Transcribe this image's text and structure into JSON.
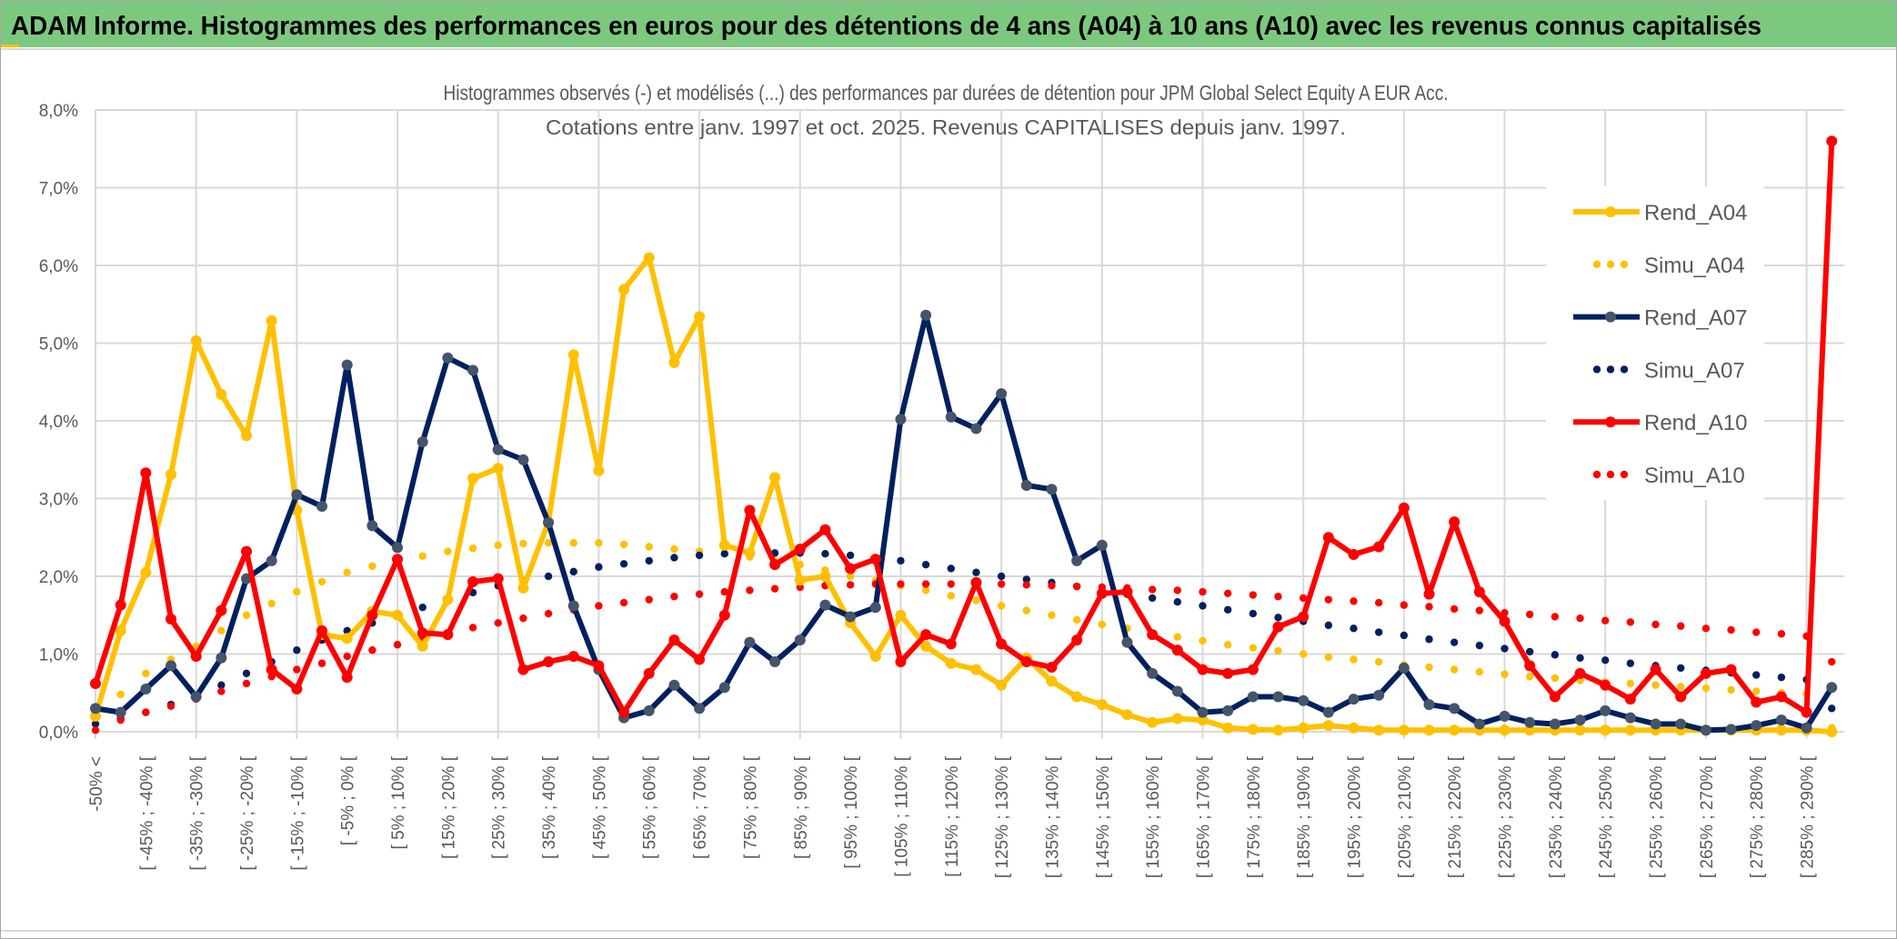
{
  "banner_title": "ADAM Informe. Histogrammes des performances en euros pour des détentions de 4 ans (A04) à 10 ans (A10) avec les revenus connus capitalisés",
  "colors": {
    "banner": "#7dc87f",
    "A04": "#ffc000",
    "A07": "#002060",
    "A07_marker": "#44546a",
    "A10": "#ff0000",
    "grid": "#d9d9d9"
  },
  "chart_data": {
    "type": "line",
    "title": [
      "Histogrammes observés (-) et modélisés (...) des performances par durées de détention pour JPM Global Select Equity A EUR Acc.",
      "Cotations entre janv. 1997 et oct. 2025. Revenus CAPITALISES depuis janv. 1997."
    ],
    "xlabel": "",
    "ylabel": "",
    "ylim": [
      0,
      8
    ],
    "y_ticks": [
      "0,0%",
      "1,0%",
      "2,0%",
      "3,0%",
      "4,0%",
      "5,0%",
      "6,0%",
      "7,0%",
      "8,0%"
    ],
    "n_categories": 70,
    "x_tick_labels_every_2": [
      "-50% <",
      "[ -45% ; -40% [",
      "[ -35% ; -30% [",
      "[ -25% ; -20% [",
      "[ -15% ; -10% [",
      "[ -5% ; 0% [",
      "[ 5% ; 10% [",
      "[ 15% ; 20% [",
      "[ 25% ; 30% [",
      "[ 35% ; 40% [",
      "[ 45% ; 50% [",
      "[ 55% ; 60% [",
      "[ 65% ; 70% [",
      "[ 75% ; 80% [",
      "[ 85% ; 90% [",
      "[ 95% ; 100% [",
      "[ 105% ; 110% [",
      "[ 115% ; 120% [",
      "[ 125% ; 130% [",
      "[ 135% ; 140% [",
      "[ 145% ; 150% [",
      "[ 155% ; 160% [",
      "[ 165% ; 170% [",
      "[ 175% ; 180% [",
      "[ 185% ; 190% [",
      "[ 195% ; 200% [",
      "[ 205% ; 210% [",
      "[ 215% ; 220% [",
      "[ 225% ; 230% [",
      "[ 235% ; 240% [",
      "[ 245% ; 250% [",
      "[ 255% ; 260% [",
      "[ 265% ; 270% [",
      "[ 275% ; 280% [",
      "[ 285% ; 290% ["
    ],
    "grid": true,
    "legend_position": "right",
    "series": [
      {
        "name": "Rend_A04",
        "style": "solid",
        "color": "#ffc000",
        "marker": "#ffc000",
        "values": [
          0.2,
          1.3,
          2.05,
          3.31,
          5.03,
          4.34,
          3.81,
          5.29,
          2.85,
          1.25,
          1.2,
          1.55,
          1.5,
          1.1,
          1.7,
          3.26,
          3.39,
          1.85,
          2.7,
          4.85,
          3.36,
          5.69,
          6.1,
          4.75,
          5.34,
          2.4,
          2.3,
          3.27,
          1.95,
          2.0,
          1.4,
          0.97,
          1.5,
          1.1,
          0.88,
          0.8,
          0.6,
          0.95,
          0.65,
          0.45,
          0.35,
          0.22,
          0.12,
          0.17,
          0.15,
          0.05,
          0.03,
          0.02,
          0.05,
          0.08,
          0.05,
          0.02,
          0.02,
          0.02,
          0.02,
          0.02,
          0.02,
          0.02,
          0.02,
          0.02,
          0.02,
          0.02,
          0.02,
          0.02,
          0.02,
          0.02,
          0.02,
          0.02,
          0.02,
          0.0
        ]
      },
      {
        "name": "Simu_A04",
        "style": "dotted",
        "color": "#ffc000",
        "values": [
          0.2,
          0.48,
          0.75,
          0.93,
          1.1,
          1.3,
          1.5,
          1.65,
          1.8,
          1.93,
          2.05,
          2.13,
          2.2,
          2.26,
          2.32,
          2.36,
          2.4,
          2.42,
          2.43,
          2.43,
          2.43,
          2.41,
          2.38,
          2.35,
          2.32,
          2.29,
          2.25,
          2.2,
          2.15,
          2.08,
          2.0,
          1.94,
          1.88,
          1.82,
          1.75,
          1.69,
          1.62,
          1.56,
          1.5,
          1.44,
          1.38,
          1.33,
          1.27,
          1.22,
          1.17,
          1.12,
          1.08,
          1.04,
          1.0,
          0.96,
          0.93,
          0.9,
          0.86,
          0.83,
          0.8,
          0.77,
          0.74,
          0.71,
          0.69,
          0.66,
          0.64,
          0.62,
          0.6,
          0.58,
          0.56,
          0.54,
          0.52,
          0.5,
          0.49,
          0.05
        ]
      },
      {
        "name": "Rend_A07",
        "style": "solid",
        "color": "#002060",
        "marker": "#44546a",
        "values": [
          0.3,
          0.25,
          0.55,
          0.85,
          0.45,
          0.95,
          1.97,
          2.2,
          3.05,
          2.9,
          4.72,
          2.65,
          2.37,
          3.73,
          4.81,
          4.65,
          3.63,
          3.5,
          2.69,
          1.62,
          0.8,
          0.18,
          0.27,
          0.6,
          0.3,
          0.57,
          1.15,
          0.9,
          1.18,
          1.63,
          1.48,
          1.6,
          4.02,
          5.36,
          4.05,
          3.9,
          4.35,
          3.17,
          3.12,
          2.2,
          2.4,
          1.15,
          0.75,
          0.52,
          0.25,
          0.27,
          0.45,
          0.45,
          0.4,
          0.25,
          0.42,
          0.47,
          0.82,
          0.35,
          0.3,
          0.1,
          0.2,
          0.12,
          0.1,
          0.15,
          0.27,
          0.18,
          0.1,
          0.1,
          0.02,
          0.03,
          0.08,
          0.15,
          0.05,
          0.57
        ]
      },
      {
        "name": "Simu_A07",
        "style": "dotted",
        "color": "#002060",
        "values": [
          0.1,
          0.17,
          0.25,
          0.35,
          0.45,
          0.6,
          0.75,
          0.9,
          1.05,
          1.18,
          1.3,
          1.4,
          1.5,
          1.6,
          1.7,
          1.79,
          1.88,
          1.94,
          2.0,
          2.06,
          2.12,
          2.16,
          2.2,
          2.24,
          2.27,
          2.29,
          2.3,
          2.3,
          2.3,
          2.29,
          2.27,
          2.24,
          2.2,
          2.15,
          2.1,
          2.05,
          2.0,
          1.96,
          1.92,
          1.87,
          1.82,
          1.77,
          1.72,
          1.67,
          1.62,
          1.57,
          1.52,
          1.47,
          1.42,
          1.37,
          1.33,
          1.28,
          1.24,
          1.19,
          1.15,
          1.11,
          1.07,
          1.03,
          0.99,
          0.95,
          0.92,
          0.88,
          0.85,
          0.82,
          0.79,
          0.76,
          0.73,
          0.7,
          0.67,
          0.3
        ]
      },
      {
        "name": "Rend_A10",
        "style": "solid",
        "color": "#ff0000",
        "marker": "#ff0000",
        "values": [
          0.62,
          1.63,
          3.33,
          1.45,
          0.97,
          1.56,
          2.32,
          0.8,
          0.55,
          1.3,
          0.7,
          1.5,
          2.22,
          1.27,
          1.25,
          1.93,
          1.97,
          0.8,
          0.9,
          0.97,
          0.85,
          0.25,
          0.75,
          1.18,
          0.93,
          1.5,
          2.85,
          2.15,
          2.35,
          2.6,
          2.1,
          2.22,
          0.9,
          1.25,
          1.13,
          1.92,
          1.13,
          0.9,
          0.83,
          1.18,
          1.78,
          1.8,
          1.25,
          1.05,
          0.8,
          0.75,
          0.8,
          1.35,
          1.48,
          2.5,
          2.28,
          2.38,
          2.88,
          1.77,
          2.7,
          1.8,
          1.42,
          0.85,
          0.45,
          0.75,
          0.6,
          0.42,
          0.8,
          0.45,
          0.75,
          0.8,
          0.38,
          0.45,
          0.25,
          7.6
        ]
      },
      {
        "name": "Simu_A10",
        "style": "dotted",
        "color": "#ff0000",
        "values": [
          0.02,
          0.15,
          0.25,
          0.33,
          0.42,
          0.52,
          0.62,
          0.71,
          0.8,
          0.88,
          0.97,
          1.05,
          1.12,
          1.2,
          1.27,
          1.34,
          1.4,
          1.46,
          1.52,
          1.57,
          1.62,
          1.66,
          1.7,
          1.74,
          1.77,
          1.8,
          1.82,
          1.84,
          1.86,
          1.88,
          1.89,
          1.9,
          1.9,
          1.9,
          1.9,
          1.9,
          1.9,
          1.89,
          1.88,
          1.87,
          1.86,
          1.85,
          1.83,
          1.82,
          1.8,
          1.78,
          1.76,
          1.74,
          1.72,
          1.7,
          1.68,
          1.66,
          1.63,
          1.61,
          1.58,
          1.56,
          1.53,
          1.51,
          1.48,
          1.46,
          1.43,
          1.41,
          1.38,
          1.36,
          1.33,
          1.31,
          1.28,
          1.26,
          1.23,
          0.9
        ]
      }
    ]
  }
}
